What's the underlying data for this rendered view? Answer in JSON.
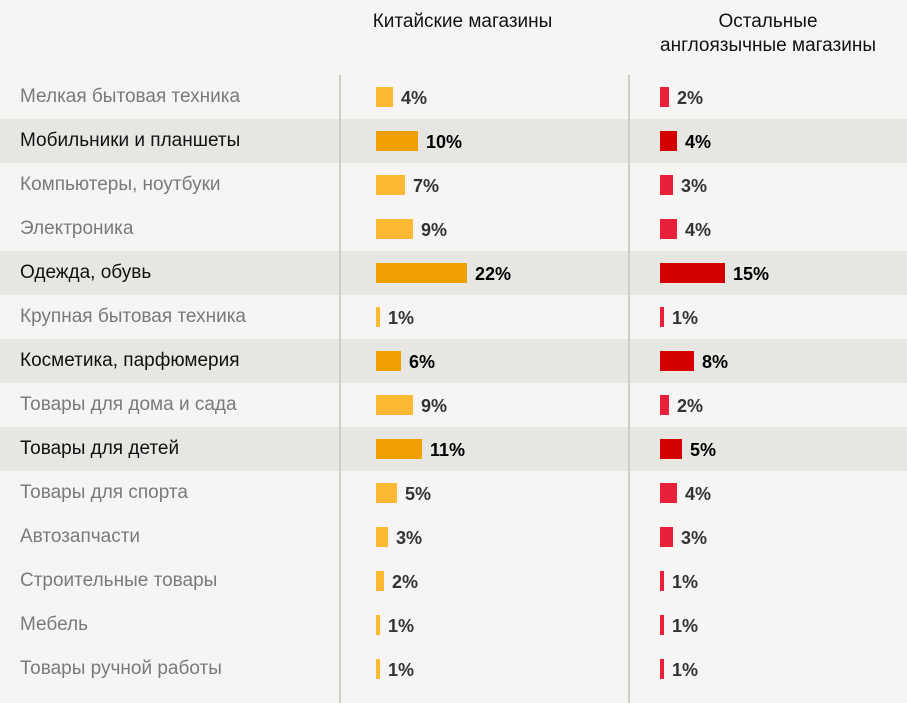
{
  "chart_data": {
    "type": "bar",
    "orientation": "horizontal",
    "categories": [
      "Мелкая бытовая техника",
      "Мобильники и планшеты",
      "Компьютеры, ноутбуки",
      "Электроника",
      "Одежда, обувь",
      "Крупная бытовая техника",
      "Косметика, парфюмерия",
      "Товары для дома и сада",
      "Товары для детей",
      "Товары для спорта",
      "Автозапчасти",
      "Строительные товары",
      "Мебель",
      "Товары ручной работы"
    ],
    "highlighted": [
      false,
      true,
      false,
      false,
      true,
      false,
      true,
      false,
      true,
      false,
      false,
      false,
      false,
      false
    ],
    "series": [
      {
        "name": "Китайские магазины",
        "values": [
          4,
          10,
          7,
          9,
          22,
          1,
          6,
          9,
          11,
          5,
          3,
          2,
          1,
          1
        ],
        "color": "#ffb833",
        "highlight_color": "#f0a000"
      },
      {
        "name": "Остальные англоязычные магазины",
        "values": [
          2,
          4,
          3,
          4,
          15,
          1,
          8,
          2,
          5,
          4,
          3,
          1,
          1,
          1
        ],
        "color": "#e8203a",
        "highlight_color": "#d40000"
      }
    ],
    "unit": "%"
  }
}
